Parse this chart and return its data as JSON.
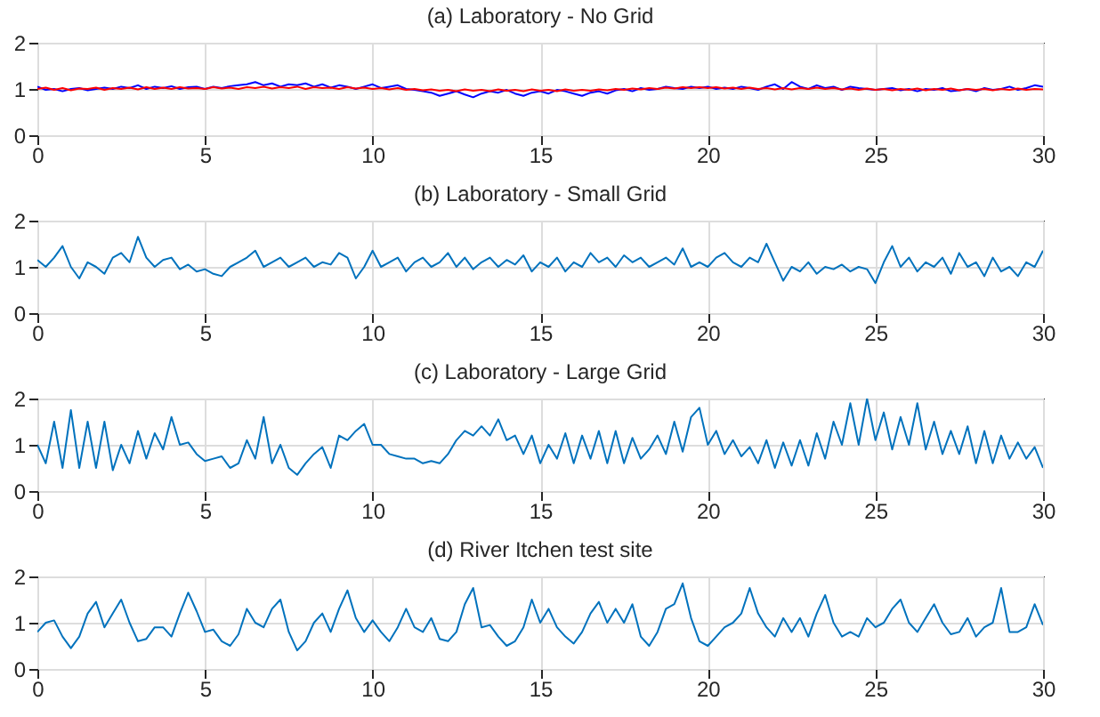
{
  "chart_data": [
    {
      "type": "line",
      "title": "(a) Laboratory - No Grid",
      "xlim": [
        0,
        30
      ],
      "xticks": [
        0,
        5,
        10,
        15,
        20,
        25,
        30
      ],
      "ylim": [
        0,
        2
      ],
      "yticks": [
        0,
        1,
        2
      ],
      "grid": true,
      "x": [
        0,
        0.25,
        0.5,
        0.75,
        1,
        1.25,
        1.5,
        1.75,
        2,
        2.25,
        2.5,
        2.75,
        3,
        3.25,
        3.5,
        3.75,
        4,
        4.25,
        4.5,
        4.75,
        5,
        5.25,
        5.5,
        5.75,
        6,
        6.25,
        6.5,
        6.75,
        7,
        7.25,
        7.5,
        7.75,
        8,
        8.25,
        8.5,
        8.75,
        9,
        9.25,
        9.5,
        9.75,
        10,
        10.25,
        10.5,
        10.75,
        11,
        11.25,
        11.5,
        11.75,
        12,
        12.25,
        12.5,
        12.75,
        13,
        13.25,
        13.5,
        13.75,
        14,
        14.25,
        14.5,
        14.75,
        15,
        15.25,
        15.5,
        15.75,
        16,
        16.25,
        16.5,
        16.75,
        17,
        17.25,
        17.5,
        17.75,
        18,
        18.25,
        18.5,
        18.75,
        19,
        19.25,
        19.5,
        19.75,
        20,
        20.25,
        20.5,
        20.75,
        21,
        21.25,
        21.5,
        21.75,
        22,
        22.25,
        22.5,
        22.75,
        23,
        23.25,
        23.5,
        23.75,
        24,
        24.25,
        24.5,
        24.75,
        25,
        25.25,
        25.5,
        25.75,
        26,
        26.25,
        26.5,
        26.75,
        27,
        27.25,
        27.5,
        27.75,
        28,
        28.25,
        28.5,
        28.75,
        29,
        29.25,
        29.5,
        29.75,
        30
      ],
      "series": [
        {
          "color": "#0000ff",
          "values": [
            1.05,
            0.98,
            1.0,
            0.95,
            1.0,
            1.02,
            0.97,
            1.0,
            1.03,
            1.0,
            1.05,
            1.02,
            1.08,
            1.0,
            1.05,
            1.02,
            1.06,
            1.0,
            1.04,
            1.05,
            1.0,
            1.05,
            1.02,
            1.06,
            1.08,
            1.1,
            1.15,
            1.08,
            1.12,
            1.05,
            1.1,
            1.08,
            1.12,
            1.05,
            1.1,
            1.03,
            1.08,
            1.05,
            1.0,
            1.05,
            1.1,
            1.02,
            1.05,
            1.08,
            1.0,
            0.98,
            0.95,
            0.92,
            0.85,
            0.9,
            0.95,
            0.88,
            0.82,
            0.9,
            0.95,
            0.92,
            0.98,
            0.9,
            0.85,
            0.92,
            0.95,
            0.9,
            0.98,
            0.95,
            0.9,
            0.85,
            0.92,
            0.95,
            0.9,
            0.97,
            1.0,
            0.95,
            1.02,
            0.98,
            1.0,
            1.05,
            1.02,
            1.0,
            1.05,
            1.02,
            1.05,
            1.0,
            1.03,
            1.0,
            1.05,
            1.02,
            0.98,
            1.05,
            1.1,
            1.0,
            1.15,
            1.05,
            1.0,
            1.08,
            1.02,
            1.05,
            0.98,
            1.05,
            1.02,
            1.0,
            0.98,
            1.0,
            1.02,
            0.97,
            1.0,
            0.95,
            1.0,
            0.98,
            1.02,
            0.95,
            0.97,
            1.0,
            0.95,
            1.02,
            0.98,
            1.0,
            1.05,
            0.98,
            1.02,
            1.08,
            1.05
          ]
        },
        {
          "color": "#ff0000",
          "values": [
            1.0,
            1.03,
            0.98,
            1.02,
            0.97,
            1.01,
            1.0,
            1.03,
            0.98,
            1.02,
            1.0,
            1.03,
            0.99,
            1.04,
            1.0,
            1.03,
            1.0,
            1.04,
            1.01,
            1.02,
            1.0,
            1.04,
            1.01,
            1.03,
            1.0,
            1.04,
            1.02,
            1.05,
            1.01,
            1.04,
            1.02,
            1.05,
            1.0,
            1.04,
            1.02,
            1.03,
            1.0,
            1.04,
            1.01,
            1.03,
            1.0,
            1.02,
            0.99,
            1.02,
            0.98,
            1.0,
            0.97,
            0.99,
            0.96,
            0.98,
            0.95,
            0.99,
            0.96,
            0.98,
            0.95,
            0.99,
            0.96,
            0.98,
            0.95,
            0.99,
            0.96,
            0.98,
            0.95,
            0.99,
            0.96,
            0.98,
            0.96,
            0.99,
            0.97,
            1.0,
            0.98,
            1.01,
            0.99,
            1.02,
            1.0,
            1.03,
            1.01,
            1.04,
            1.02,
            1.04,
            1.02,
            1.04,
            1.01,
            1.03,
            1.0,
            1.03,
            1.0,
            1.02,
            0.99,
            1.02,
            0.99,
            1.02,
            1.0,
            1.03,
            1.0,
            1.02,
            0.99,
            1.01,
            0.98,
            1.01,
            0.98,
            1.0,
            0.97,
            1.0,
            0.98,
            1.01,
            0.97,
            1.0,
            0.98,
            1.01,
            0.97,
            1.0,
            0.98,
            1.0,
            0.97,
            1.0,
            0.98,
            1.01,
            0.98,
            1.0,
            0.99
          ]
        }
      ]
    },
    {
      "type": "line",
      "title": "(b) Laboratory - Small Grid",
      "xlim": [
        0,
        30
      ],
      "xticks": [
        0,
        5,
        10,
        15,
        20,
        25,
        30
      ],
      "ylim": [
        0,
        2
      ],
      "yticks": [
        0,
        1,
        2
      ],
      "grid": true,
      "x": [
        0,
        0.25,
        0.5,
        0.75,
        1,
        1.25,
        1.5,
        1.75,
        2,
        2.25,
        2.5,
        2.75,
        3,
        3.25,
        3.5,
        3.75,
        4,
        4.25,
        4.5,
        4.75,
        5,
        5.25,
        5.5,
        5.75,
        6,
        6.25,
        6.5,
        6.75,
        7,
        7.25,
        7.5,
        7.75,
        8,
        8.25,
        8.5,
        8.75,
        9,
        9.25,
        9.5,
        9.75,
        10,
        10.25,
        10.5,
        10.75,
        11,
        11.25,
        11.5,
        11.75,
        12,
        12.25,
        12.5,
        12.75,
        13,
        13.25,
        13.5,
        13.75,
        14,
        14.25,
        14.5,
        14.75,
        15,
        15.25,
        15.5,
        15.75,
        16,
        16.25,
        16.5,
        16.75,
        17,
        17.25,
        17.5,
        17.75,
        18,
        18.25,
        18.5,
        18.75,
        19,
        19.25,
        19.5,
        19.75,
        20,
        20.25,
        20.5,
        20.75,
        21,
        21.25,
        21.5,
        21.75,
        22,
        22.25,
        22.5,
        22.75,
        23,
        23.25,
        23.5,
        23.75,
        24,
        24.25,
        24.5,
        24.75,
        25,
        25.25,
        25.5,
        25.75,
        26,
        26.25,
        26.5,
        26.75,
        27,
        27.25,
        27.5,
        27.75,
        28,
        28.25,
        28.5,
        28.75,
        29,
        29.25,
        29.5,
        29.75,
        30
      ],
      "series": [
        {
          "color": "#0072bd",
          "values": [
            1.15,
            1.0,
            1.2,
            1.45,
            1.0,
            0.75,
            1.1,
            1.0,
            0.85,
            1.2,
            1.3,
            1.1,
            1.65,
            1.2,
            1.0,
            1.15,
            1.2,
            0.95,
            1.05,
            0.9,
            0.95,
            0.85,
            0.8,
            1.0,
            1.1,
            1.2,
            1.35,
            1.0,
            1.1,
            1.2,
            1.0,
            1.1,
            1.2,
            1.0,
            1.1,
            1.05,
            1.3,
            1.2,
            0.75,
            1.0,
            1.35,
            1.0,
            1.1,
            1.2,
            0.9,
            1.1,
            1.2,
            1.0,
            1.1,
            1.3,
            1.0,
            1.2,
            0.95,
            1.1,
            1.2,
            1.0,
            1.15,
            1.05,
            1.25,
            0.9,
            1.1,
            1.0,
            1.2,
            0.9,
            1.1,
            1.0,
            1.3,
            1.1,
            1.2,
            1.0,
            1.25,
            1.1,
            1.2,
            1.0,
            1.1,
            1.2,
            1.05,
            1.4,
            1.0,
            1.1,
            1.0,
            1.2,
            1.3,
            1.1,
            1.0,
            1.2,
            1.1,
            1.5,
            1.1,
            0.7,
            1.0,
            0.9,
            1.1,
            0.85,
            1.0,
            0.95,
            1.05,
            0.9,
            1.0,
            0.95,
            0.65,
            1.1,
            1.45,
            1.0,
            1.2,
            0.9,
            1.1,
            1.0,
            1.2,
            0.85,
            1.3,
            1.0,
            1.1,
            0.8,
            1.2,
            0.9,
            1.0,
            0.8,
            1.1,
            1.0,
            1.35
          ]
        }
      ]
    },
    {
      "type": "line",
      "title": "(c) Laboratory - Large Grid",
      "xlim": [
        0,
        30
      ],
      "xticks": [
        0,
        5,
        10,
        15,
        20,
        25,
        30
      ],
      "ylim": [
        0,
        2
      ],
      "yticks": [
        0,
        1,
        2
      ],
      "grid": true,
      "x": [
        0,
        0.25,
        0.5,
        0.75,
        1,
        1.25,
        1.5,
        1.75,
        2,
        2.25,
        2.5,
        2.75,
        3,
        3.25,
        3.5,
        3.75,
        4,
        4.25,
        4.5,
        4.75,
        5,
        5.25,
        5.5,
        5.75,
        6,
        6.25,
        6.5,
        6.75,
        7,
        7.25,
        7.5,
        7.75,
        8,
        8.25,
        8.5,
        8.75,
        9,
        9.25,
        9.5,
        9.75,
        10,
        10.25,
        10.5,
        10.75,
        11,
        11.25,
        11.5,
        11.75,
        12,
        12.25,
        12.5,
        12.75,
        13,
        13.25,
        13.5,
        13.75,
        14,
        14.25,
        14.5,
        14.75,
        15,
        15.25,
        15.5,
        15.75,
        16,
        16.25,
        16.5,
        16.75,
        17,
        17.25,
        17.5,
        17.75,
        18,
        18.25,
        18.5,
        18.75,
        19,
        19.25,
        19.5,
        19.75,
        20,
        20.25,
        20.5,
        20.75,
        21,
        21.25,
        21.5,
        21.75,
        22,
        22.25,
        22.5,
        22.75,
        23,
        23.25,
        23.5,
        23.75,
        24,
        24.25,
        24.5,
        24.75,
        25,
        25.25,
        25.5,
        25.75,
        26,
        26.25,
        26.5,
        26.75,
        27,
        27.25,
        27.5,
        27.75,
        28,
        28.25,
        28.5,
        28.75,
        29,
        29.25,
        29.5,
        29.75,
        30
      ],
      "series": [
        {
          "color": "#0072bd",
          "values": [
            1.0,
            0.6,
            1.5,
            0.5,
            1.75,
            0.5,
            1.5,
            0.5,
            1.5,
            0.45,
            1.0,
            0.6,
            1.3,
            0.7,
            1.25,
            0.9,
            1.6,
            1.0,
            1.05,
            0.8,
            0.65,
            0.7,
            0.75,
            0.5,
            0.6,
            1.1,
            0.7,
            1.6,
            0.6,
            1.0,
            0.5,
            0.35,
            0.6,
            0.8,
            0.95,
            0.5,
            1.2,
            1.1,
            1.3,
            1.45,
            1.0,
            1.0,
            0.8,
            0.75,
            0.7,
            0.7,
            0.6,
            0.65,
            0.6,
            0.8,
            1.1,
            1.3,
            1.2,
            1.4,
            1.2,
            1.55,
            1.1,
            1.2,
            0.8,
            1.2,
            0.6,
            1.0,
            0.7,
            1.25,
            0.6,
            1.2,
            0.7,
            1.3,
            0.6,
            1.3,
            0.6,
            1.15,
            0.7,
            0.9,
            1.2,
            0.8,
            1.5,
            0.85,
            1.6,
            1.8,
            1.0,
            1.3,
            0.8,
            1.1,
            0.75,
            0.95,
            0.6,
            1.1,
            0.5,
            1.05,
            0.55,
            1.1,
            0.55,
            1.25,
            0.7,
            1.5,
            1.0,
            1.9,
            1.0,
            2.0,
            1.1,
            1.7,
            0.9,
            1.6,
            1.0,
            1.9,
            0.9,
            1.5,
            0.8,
            1.3,
            0.8,
            1.4,
            0.6,
            1.3,
            0.6,
            1.2,
            0.7,
            1.05,
            0.7,
            0.95,
            0.5
          ]
        }
      ]
    },
    {
      "type": "line",
      "title": "(d) River Itchen test site",
      "xlim": [
        0,
        30
      ],
      "xticks": [
        0,
        5,
        10,
        15,
        20,
        25,
        30
      ],
      "ylim": [
        0,
        2
      ],
      "yticks": [
        0,
        1,
        2
      ],
      "grid": true,
      "x": [
        0,
        0.25,
        0.5,
        0.75,
        1,
        1.25,
        1.5,
        1.75,
        2,
        2.25,
        2.5,
        2.75,
        3,
        3.25,
        3.5,
        3.75,
        4,
        4.25,
        4.5,
        4.75,
        5,
        5.25,
        5.5,
        5.75,
        6,
        6.25,
        6.5,
        6.75,
        7,
        7.25,
        7.5,
        7.75,
        8,
        8.25,
        8.5,
        8.75,
        9,
        9.25,
        9.5,
        9.75,
        10,
        10.25,
        10.5,
        10.75,
        11,
        11.25,
        11.5,
        11.75,
        12,
        12.25,
        12.5,
        12.75,
        13,
        13.25,
        13.5,
        13.75,
        14,
        14.25,
        14.5,
        14.75,
        15,
        15.25,
        15.5,
        15.75,
        16,
        16.25,
        16.5,
        16.75,
        17,
        17.25,
        17.5,
        17.75,
        18,
        18.25,
        18.5,
        18.75,
        19,
        19.25,
        19.5,
        19.75,
        20,
        20.25,
        20.5,
        20.75,
        21,
        21.25,
        21.5,
        21.75,
        22,
        22.25,
        22.5,
        22.75,
        23,
        23.25,
        23.5,
        23.75,
        24,
        24.25,
        24.5,
        24.75,
        25,
        25.25,
        25.5,
        25.75,
        26,
        26.25,
        26.5,
        26.75,
        27,
        27.25,
        27.5,
        27.75,
        28,
        28.25,
        28.5,
        28.75,
        29,
        29.25,
        29.5,
        29.75,
        30
      ],
      "series": [
        {
          "color": "#0072bd",
          "values": [
            0.8,
            1.0,
            1.05,
            0.7,
            0.45,
            0.7,
            1.2,
            1.45,
            0.9,
            1.2,
            1.5,
            1.0,
            0.6,
            0.65,
            0.9,
            0.9,
            0.7,
            1.2,
            1.65,
            1.25,
            0.8,
            0.85,
            0.6,
            0.5,
            0.75,
            1.3,
            1.0,
            0.9,
            1.3,
            1.5,
            0.8,
            0.4,
            0.6,
            1.0,
            1.2,
            0.8,
            1.3,
            1.7,
            1.1,
            0.8,
            1.05,
            0.8,
            0.6,
            0.9,
            1.3,
            0.9,
            0.8,
            1.1,
            0.65,
            0.6,
            0.8,
            1.4,
            1.75,
            0.9,
            0.95,
            0.7,
            0.5,
            0.6,
            0.9,
            1.5,
            1.0,
            1.3,
            0.9,
            0.7,
            0.55,
            0.8,
            1.2,
            1.45,
            1.0,
            1.3,
            1.0,
            1.4,
            0.7,
            0.5,
            0.8,
            1.3,
            1.4,
            1.85,
            1.1,
            0.6,
            0.5,
            0.7,
            0.9,
            1.0,
            1.2,
            1.75,
            1.2,
            0.9,
            0.7,
            1.1,
            0.8,
            1.1,
            0.7,
            1.2,
            1.6,
            1.0,
            0.7,
            0.8,
            0.7,
            1.1,
            0.9,
            1.0,
            1.3,
            1.5,
            1.0,
            0.8,
            1.1,
            1.4,
            1.0,
            0.75,
            0.8,
            1.1,
            0.7,
            0.9,
            1.0,
            1.75,
            0.8,
            0.8,
            0.9,
            1.4,
            0.95
          ]
        }
      ]
    }
  ]
}
